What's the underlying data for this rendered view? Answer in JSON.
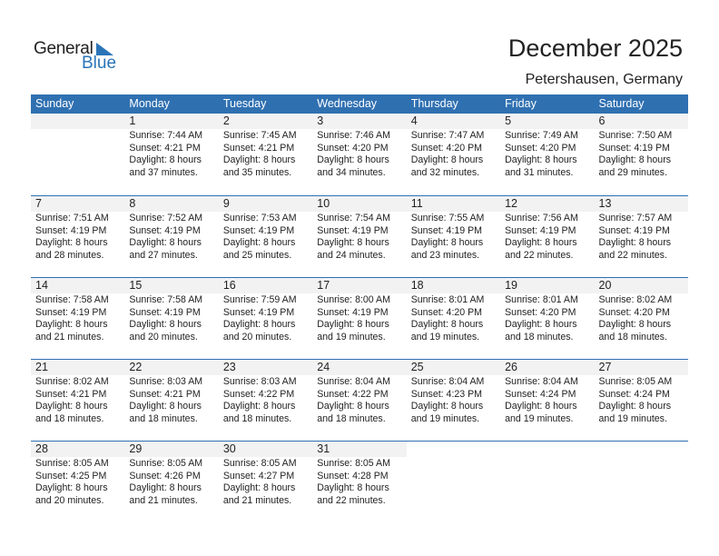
{
  "logo": {
    "word1": "General",
    "word2": "Blue"
  },
  "title": "December 2025",
  "location": "Petershausen, Germany",
  "colors": {
    "header": "#2f70b1",
    "date_band": "#f2f2f2",
    "brand": "#2a74b8"
  },
  "weekdays": [
    "Sunday",
    "Monday",
    "Tuesday",
    "Wednesday",
    "Thursday",
    "Friday",
    "Saturday"
  ],
  "weeks": [
    [
      null,
      {
        "day": "1",
        "sunrise": "Sunrise: 7:44 AM",
        "sunset": "Sunset: 4:21 PM",
        "daylight": "Daylight: 8 hours",
        "minutes": "and 37 minutes."
      },
      {
        "day": "2",
        "sunrise": "Sunrise: 7:45 AM",
        "sunset": "Sunset: 4:21 PM",
        "daylight": "Daylight: 8 hours",
        "minutes": "and 35 minutes."
      },
      {
        "day": "3",
        "sunrise": "Sunrise: 7:46 AM",
        "sunset": "Sunset: 4:20 PM",
        "daylight": "Daylight: 8 hours",
        "minutes": "and 34 minutes."
      },
      {
        "day": "4",
        "sunrise": "Sunrise: 7:47 AM",
        "sunset": "Sunset: 4:20 PM",
        "daylight": "Daylight: 8 hours",
        "minutes": "and 32 minutes."
      },
      {
        "day": "5",
        "sunrise": "Sunrise: 7:49 AM",
        "sunset": "Sunset: 4:20 PM",
        "daylight": "Daylight: 8 hours",
        "minutes": "and 31 minutes."
      },
      {
        "day": "6",
        "sunrise": "Sunrise: 7:50 AM",
        "sunset": "Sunset: 4:19 PM",
        "daylight": "Daylight: 8 hours",
        "minutes": "and 29 minutes."
      }
    ],
    [
      {
        "day": "7",
        "sunrise": "Sunrise: 7:51 AM",
        "sunset": "Sunset: 4:19 PM",
        "daylight": "Daylight: 8 hours",
        "minutes": "and 28 minutes."
      },
      {
        "day": "8",
        "sunrise": "Sunrise: 7:52 AM",
        "sunset": "Sunset: 4:19 PM",
        "daylight": "Daylight: 8 hours",
        "minutes": "and 27 minutes."
      },
      {
        "day": "9",
        "sunrise": "Sunrise: 7:53 AM",
        "sunset": "Sunset: 4:19 PM",
        "daylight": "Daylight: 8 hours",
        "minutes": "and 25 minutes."
      },
      {
        "day": "10",
        "sunrise": "Sunrise: 7:54 AM",
        "sunset": "Sunset: 4:19 PM",
        "daylight": "Daylight: 8 hours",
        "minutes": "and 24 minutes."
      },
      {
        "day": "11",
        "sunrise": "Sunrise: 7:55 AM",
        "sunset": "Sunset: 4:19 PM",
        "daylight": "Daylight: 8 hours",
        "minutes": "and 23 minutes."
      },
      {
        "day": "12",
        "sunrise": "Sunrise: 7:56 AM",
        "sunset": "Sunset: 4:19 PM",
        "daylight": "Daylight: 8 hours",
        "minutes": "and 22 minutes."
      },
      {
        "day": "13",
        "sunrise": "Sunrise: 7:57 AM",
        "sunset": "Sunset: 4:19 PM",
        "daylight": "Daylight: 8 hours",
        "minutes": "and 22 minutes."
      }
    ],
    [
      {
        "day": "14",
        "sunrise": "Sunrise: 7:58 AM",
        "sunset": "Sunset: 4:19 PM",
        "daylight": "Daylight: 8 hours",
        "minutes": "and 21 minutes."
      },
      {
        "day": "15",
        "sunrise": "Sunrise: 7:58 AM",
        "sunset": "Sunset: 4:19 PM",
        "daylight": "Daylight: 8 hours",
        "minutes": "and 20 minutes."
      },
      {
        "day": "16",
        "sunrise": "Sunrise: 7:59 AM",
        "sunset": "Sunset: 4:19 PM",
        "daylight": "Daylight: 8 hours",
        "minutes": "and 20 minutes."
      },
      {
        "day": "17",
        "sunrise": "Sunrise: 8:00 AM",
        "sunset": "Sunset: 4:19 PM",
        "daylight": "Daylight: 8 hours",
        "minutes": "and 19 minutes."
      },
      {
        "day": "18",
        "sunrise": "Sunrise: 8:01 AM",
        "sunset": "Sunset: 4:20 PM",
        "daylight": "Daylight: 8 hours",
        "minutes": "and 19 minutes."
      },
      {
        "day": "19",
        "sunrise": "Sunrise: 8:01 AM",
        "sunset": "Sunset: 4:20 PM",
        "daylight": "Daylight: 8 hours",
        "minutes": "and 18 minutes."
      },
      {
        "day": "20",
        "sunrise": "Sunrise: 8:02 AM",
        "sunset": "Sunset: 4:20 PM",
        "daylight": "Daylight: 8 hours",
        "minutes": "and 18 minutes."
      }
    ],
    [
      {
        "day": "21",
        "sunrise": "Sunrise: 8:02 AM",
        "sunset": "Sunset: 4:21 PM",
        "daylight": "Daylight: 8 hours",
        "minutes": "and 18 minutes."
      },
      {
        "day": "22",
        "sunrise": "Sunrise: 8:03 AM",
        "sunset": "Sunset: 4:21 PM",
        "daylight": "Daylight: 8 hours",
        "minutes": "and 18 minutes."
      },
      {
        "day": "23",
        "sunrise": "Sunrise: 8:03 AM",
        "sunset": "Sunset: 4:22 PM",
        "daylight": "Daylight: 8 hours",
        "minutes": "and 18 minutes."
      },
      {
        "day": "24",
        "sunrise": "Sunrise: 8:04 AM",
        "sunset": "Sunset: 4:22 PM",
        "daylight": "Daylight: 8 hours",
        "minutes": "and 18 minutes."
      },
      {
        "day": "25",
        "sunrise": "Sunrise: 8:04 AM",
        "sunset": "Sunset: 4:23 PM",
        "daylight": "Daylight: 8 hours",
        "minutes": "and 19 minutes."
      },
      {
        "day": "26",
        "sunrise": "Sunrise: 8:04 AM",
        "sunset": "Sunset: 4:24 PM",
        "daylight": "Daylight: 8 hours",
        "minutes": "and 19 minutes."
      },
      {
        "day": "27",
        "sunrise": "Sunrise: 8:05 AM",
        "sunset": "Sunset: 4:24 PM",
        "daylight": "Daylight: 8 hours",
        "minutes": "and 19 minutes."
      }
    ],
    [
      {
        "day": "28",
        "sunrise": "Sunrise: 8:05 AM",
        "sunset": "Sunset: 4:25 PM",
        "daylight": "Daylight: 8 hours",
        "minutes": "and 20 minutes."
      },
      {
        "day": "29",
        "sunrise": "Sunrise: 8:05 AM",
        "sunset": "Sunset: 4:26 PM",
        "daylight": "Daylight: 8 hours",
        "minutes": "and 21 minutes."
      },
      {
        "day": "30",
        "sunrise": "Sunrise: 8:05 AM",
        "sunset": "Sunset: 4:27 PM",
        "daylight": "Daylight: 8 hours",
        "minutes": "and 21 minutes."
      },
      {
        "day": "31",
        "sunrise": "Sunrise: 8:05 AM",
        "sunset": "Sunset: 4:28 PM",
        "daylight": "Daylight: 8 hours",
        "minutes": "and 22 minutes."
      },
      null,
      null,
      null
    ]
  ]
}
